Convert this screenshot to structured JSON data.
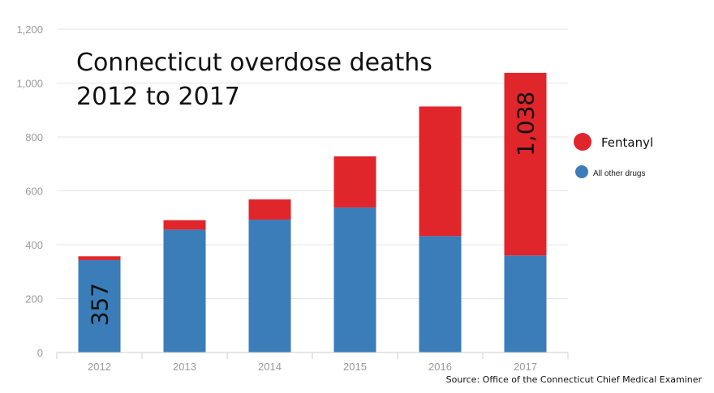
{
  "chart_data": {
    "type": "bar",
    "stacked": true,
    "title_lines": [
      "Connecticut overdose deaths",
      "2012 to 2017"
    ],
    "categories": [
      "2012",
      "2013",
      "2014",
      "2015",
      "2016",
      "2017"
    ],
    "series": [
      {
        "name": "All other drugs",
        "color": "#3b7db8",
        "values": [
          343,
          456,
          493,
          538,
          432,
          360
        ]
      },
      {
        "name": "Fentanyl",
        "color": "#e0252b",
        "values": [
          14,
          35,
          75,
          190,
          481,
          678
        ]
      }
    ],
    "yticks": [
      "0",
      "200",
      "400",
      "600",
      "800",
      "1,000",
      "1,200"
    ],
    "ylim": [
      0,
      1200
    ],
    "grid": true,
    "legend_position": "right",
    "annotations": [
      {
        "category": "2012",
        "text": "357"
      },
      {
        "category": "2017",
        "text": "1,038"
      }
    ],
    "source": "Source: Office of the Connecticut Chief Medical Examiner"
  }
}
